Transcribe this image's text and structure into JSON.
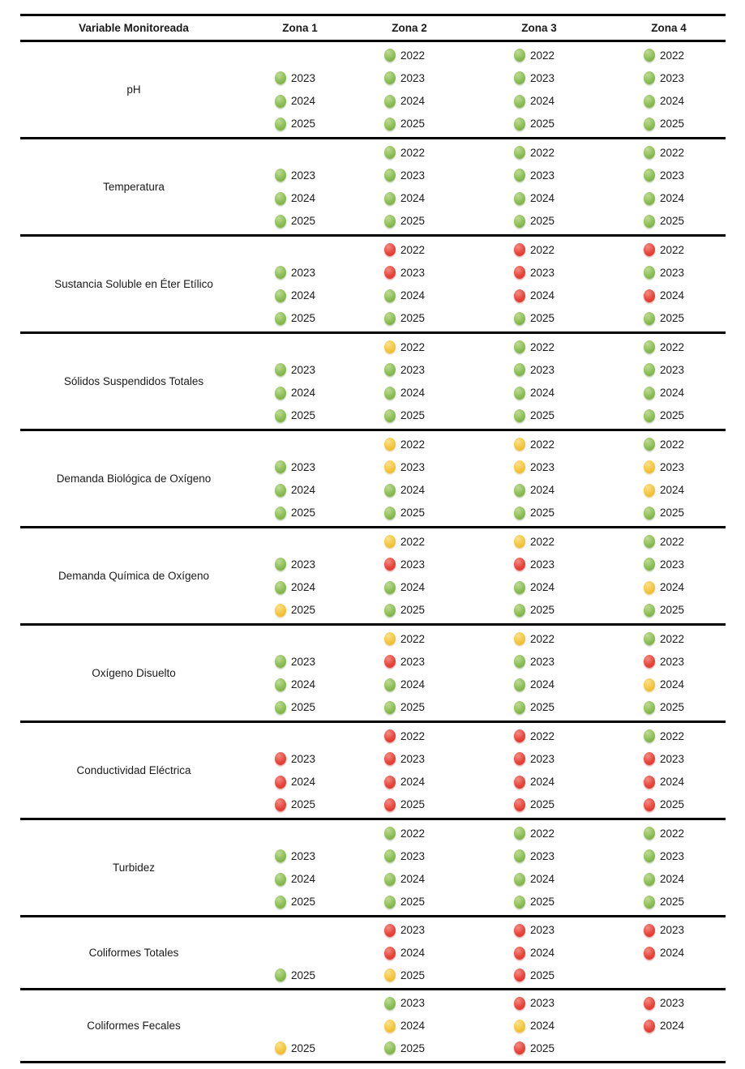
{
  "chart_data": {
    "type": "table",
    "title": "",
    "columns": [
      "Variable Monitoreada",
      "Zona 1",
      "Zona 2",
      "Zona 3",
      "Zona 4"
    ],
    "status_colors": {
      "green": "#8CBE56",
      "yellow": "#F4C63F",
      "red": "#E8453C"
    },
    "rows": [
      {
        "variable": "pH",
        "years": [
          "2022",
          "2023",
          "2024",
          "2025"
        ],
        "zones": [
          [
            null,
            "green",
            "green",
            "green"
          ],
          [
            "green",
            "green",
            "green",
            "green"
          ],
          [
            "green",
            "green",
            "green",
            "green"
          ],
          [
            "green",
            "green",
            "green",
            "green"
          ]
        ]
      },
      {
        "variable": "Temperatura",
        "years": [
          "2022",
          "2023",
          "2024",
          "2025"
        ],
        "zones": [
          [
            null,
            "green",
            "green",
            "green"
          ],
          [
            "green",
            "green",
            "green",
            "green"
          ],
          [
            "green",
            "green",
            "green",
            "green"
          ],
          [
            "green",
            "green",
            "green",
            "green"
          ]
        ]
      },
      {
        "variable": "Sustancia Soluble en Éter Etílico",
        "years": [
          "2022",
          "2023",
          "2024",
          "2025"
        ],
        "zones": [
          [
            null,
            "green",
            "green",
            "green"
          ],
          [
            "red",
            "red",
            "green",
            "green"
          ],
          [
            "red",
            "red",
            "red",
            "green"
          ],
          [
            "red",
            "green",
            "red",
            "green"
          ]
        ]
      },
      {
        "variable": "Sólidos Suspendidos Totales",
        "years": [
          "2022",
          "2023",
          "2024",
          "2025"
        ],
        "zones": [
          [
            null,
            "green",
            "green",
            "green"
          ],
          [
            "yellow",
            "green",
            "green",
            "green"
          ],
          [
            "green",
            "green",
            "green",
            "green"
          ],
          [
            "green",
            "green",
            "green",
            "green"
          ]
        ]
      },
      {
        "variable": "Demanda Biológica de Oxígeno",
        "years": [
          "2022",
          "2023",
          "2024",
          "2025"
        ],
        "zones": [
          [
            null,
            "green",
            "green",
            "green"
          ],
          [
            "yellow",
            "yellow",
            "green",
            "green"
          ],
          [
            "yellow",
            "yellow",
            "green",
            "green"
          ],
          [
            "green",
            "yellow",
            "yellow",
            "green"
          ]
        ]
      },
      {
        "variable": "Demanda Química de Oxígeno",
        "years": [
          "2022",
          "2023",
          "2024",
          "2025"
        ],
        "zones": [
          [
            null,
            "green",
            "green",
            "yellow"
          ],
          [
            "yellow",
            "red",
            "green",
            "green"
          ],
          [
            "yellow",
            "red",
            "green",
            "green"
          ],
          [
            "green",
            "green",
            "yellow",
            "green"
          ]
        ]
      },
      {
        "variable": "Oxígeno Disuelto",
        "years": [
          "2022",
          "2023",
          "2024",
          "2025"
        ],
        "zones": [
          [
            null,
            "green",
            "green",
            "green"
          ],
          [
            "yellow",
            "red",
            "green",
            "green"
          ],
          [
            "yellow",
            "green",
            "green",
            "green"
          ],
          [
            "green",
            "red",
            "yellow",
            "green"
          ]
        ]
      },
      {
        "variable": "Conductividad Eléctrica",
        "years": [
          "2022",
          "2023",
          "2024",
          "2025"
        ],
        "zones": [
          [
            null,
            "red",
            "red",
            "red"
          ],
          [
            "red",
            "red",
            "red",
            "red"
          ],
          [
            "red",
            "red",
            "red",
            "red"
          ],
          [
            "green",
            "red",
            "red",
            "red"
          ]
        ]
      },
      {
        "variable": "Turbidez",
        "years": [
          "2022",
          "2023",
          "2024",
          "2025"
        ],
        "zones": [
          [
            null,
            "green",
            "green",
            "green"
          ],
          [
            "green",
            "green",
            "green",
            "green"
          ],
          [
            "green",
            "green",
            "green",
            "green"
          ],
          [
            "green",
            "green",
            "green",
            "green"
          ]
        ]
      },
      {
        "variable": "Coliformes Totales",
        "years": [
          "2023",
          "2024",
          "2025"
        ],
        "zones": [
          [
            null,
            null,
            "green"
          ],
          [
            "red",
            "red",
            "yellow"
          ],
          [
            "red",
            "red",
            "red"
          ],
          [
            "red",
            "red",
            null
          ]
        ]
      },
      {
        "variable": "Coliformes Fecales",
        "years": [
          "2023",
          "2024",
          "2025"
        ],
        "zones": [
          [
            null,
            null,
            "yellow"
          ],
          [
            "green",
            "yellow",
            "green"
          ],
          [
            "red",
            "yellow",
            "red"
          ],
          [
            "red",
            "red",
            null
          ]
        ]
      }
    ]
  }
}
